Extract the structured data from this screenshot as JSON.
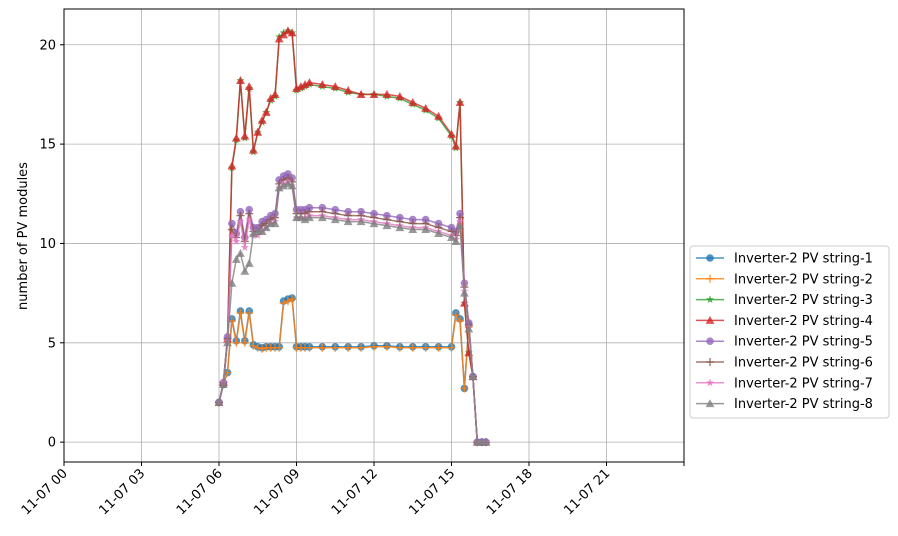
{
  "chart_data": {
    "type": "line",
    "title": "",
    "xlabel": "",
    "ylabel": "number of PV modules",
    "x_unit": "hour of 11-07",
    "xlim": [
      0,
      24
    ],
    "ylim": [
      -1,
      21.8
    ],
    "x_ticks": [
      0,
      3,
      6,
      9,
      12,
      15,
      18,
      21
    ],
    "x_tick_labels": [
      "11-07 00",
      "11-07 03",
      "11-07 06",
      "11-07 09",
      "11-07 12",
      "11-07 15",
      "11-07 18",
      "11-07 21"
    ],
    "y_ticks": [
      0,
      5,
      10,
      15,
      20
    ],
    "y_tick_labels": [
      "0",
      "5",
      "10",
      "15",
      "20"
    ],
    "grid": true,
    "legend_position": "right-outside",
    "x": [
      6.0,
      6.17,
      6.33,
      6.5,
      6.67,
      6.83,
      7.0,
      7.17,
      7.33,
      7.5,
      7.67,
      7.83,
      8.0,
      8.17,
      8.33,
      8.5,
      8.67,
      8.83,
      9.0,
      9.17,
      9.33,
      9.5,
      10.0,
      10.5,
      11.0,
      11.5,
      12.0,
      12.5,
      13.0,
      13.5,
      14.0,
      14.5,
      15.0,
      15.17,
      15.33,
      15.5,
      15.67,
      15.83,
      16.0,
      16.17,
      16.33
    ],
    "series": [
      {
        "name": "Inverter-2 PV string-1",
        "color": "#1f77b4",
        "marker": "circle",
        "values": [
          2.0,
          2.9,
          3.5,
          6.2,
          5.1,
          6.6,
          5.1,
          6.6,
          4.9,
          4.8,
          4.75,
          4.8,
          4.8,
          4.8,
          4.8,
          7.1,
          7.2,
          7.25,
          4.8,
          4.8,
          4.8,
          4.8,
          4.8,
          4.8,
          4.8,
          4.8,
          4.85,
          4.85,
          4.8,
          4.8,
          4.8,
          4.8,
          4.8,
          6.5,
          6.2,
          2.7,
          5.9,
          3.3,
          0.0,
          0.0,
          0.0
        ]
      },
      {
        "name": "Inverter-2 PV string-2",
        "color": "#ff7f0e",
        "marker": "plus",
        "values": [
          2.0,
          2.9,
          3.5,
          6.1,
          5.0,
          6.5,
          5.0,
          6.5,
          4.85,
          4.75,
          4.7,
          4.75,
          4.75,
          4.75,
          4.75,
          7.0,
          7.1,
          7.2,
          4.75,
          4.75,
          4.75,
          4.75,
          4.75,
          4.75,
          4.75,
          4.75,
          4.8,
          4.8,
          4.75,
          4.75,
          4.75,
          4.75,
          4.75,
          6.4,
          6.1,
          2.7,
          5.8,
          3.3,
          0.0,
          0.0,
          0.0
        ]
      },
      {
        "name": "Inverter-2 PV string-3",
        "color": "#2ca02c",
        "marker": "star",
        "values": [
          2.0,
          3.0,
          5.2,
          13.8,
          15.2,
          18.2,
          15.3,
          17.8,
          14.6,
          15.6,
          16.1,
          16.6,
          17.2,
          17.4,
          20.4,
          20.6,
          20.7,
          20.6,
          17.7,
          17.8,
          17.9,
          18.0,
          17.9,
          17.8,
          17.6,
          17.5,
          17.5,
          17.4,
          17.3,
          17.0,
          16.7,
          16.3,
          15.4,
          14.8,
          17.1,
          7.0,
          4.5,
          3.3,
          0.0,
          0.0,
          0.0
        ]
      },
      {
        "name": "Inverter-2 PV string-4",
        "color": "#d62728",
        "marker": "triangle-up",
        "values": [
          2.0,
          3.0,
          5.2,
          13.9,
          15.3,
          18.2,
          15.4,
          17.9,
          14.7,
          15.6,
          16.2,
          16.6,
          17.3,
          17.5,
          20.3,
          20.5,
          20.7,
          20.6,
          17.8,
          17.9,
          18.0,
          18.1,
          18.0,
          17.9,
          17.7,
          17.5,
          17.5,
          17.5,
          17.4,
          17.1,
          16.8,
          16.4,
          15.5,
          14.9,
          17.1,
          7.0,
          4.5,
          3.3,
          0.0,
          0.0,
          0.0
        ]
      },
      {
        "name": "Inverter-2 PV string-5",
        "color": "#9467bd",
        "marker": "circle",
        "values": [
          2.0,
          3.0,
          5.3,
          11.0,
          10.5,
          11.6,
          10.3,
          11.7,
          10.8,
          10.8,
          11.1,
          11.2,
          11.4,
          11.5,
          13.2,
          13.4,
          13.5,
          13.3,
          11.7,
          11.7,
          11.7,
          11.8,
          11.8,
          11.7,
          11.6,
          11.6,
          11.5,
          11.4,
          11.3,
          11.2,
          11.2,
          11.0,
          10.8,
          10.6,
          11.5,
          8.0,
          6.0,
          3.3,
          0.0,
          0.0,
          0.0
        ]
      },
      {
        "name": "Inverter-2 PV string-6",
        "color": "#8c564b",
        "marker": "plus",
        "values": [
          2.0,
          3.0,
          5.2,
          10.7,
          10.3,
          11.4,
          10.1,
          11.5,
          10.6,
          10.6,
          10.9,
          11.0,
          11.2,
          11.3,
          13.0,
          13.2,
          13.3,
          13.1,
          11.5,
          11.5,
          11.5,
          11.6,
          11.6,
          11.5,
          11.4,
          11.4,
          11.3,
          11.2,
          11.1,
          11.0,
          11.0,
          10.8,
          10.6,
          10.4,
          11.3,
          7.8,
          5.9,
          3.3,
          0.0,
          0.0,
          0.0
        ]
      },
      {
        "name": "Inverter-2 PV string-7",
        "color": "#e377c2",
        "marker": "star",
        "values": [
          2.0,
          3.0,
          5.1,
          10.4,
          10.1,
          11.1,
          9.8,
          11.2,
          10.4,
          10.4,
          10.6,
          10.8,
          11.0,
          11.1,
          12.8,
          13.0,
          13.1,
          12.9,
          11.3,
          11.3,
          11.3,
          11.4,
          11.4,
          11.3,
          11.2,
          11.2,
          11.1,
          11.0,
          10.9,
          10.8,
          10.8,
          10.6,
          10.4,
          10.2,
          11.1,
          7.6,
          5.8,
          3.3,
          0.0,
          0.0,
          0.0
        ]
      },
      {
        "name": "Inverter-2 PV string-8",
        "color": "#7f7f7f",
        "marker": "triangle-up",
        "values": [
          2.0,
          2.9,
          5.0,
          8.0,
          9.2,
          9.5,
          8.6,
          9.0,
          10.5,
          10.6,
          10.6,
          10.8,
          11.0,
          11.0,
          12.8,
          12.9,
          13.0,
          12.9,
          11.3,
          11.3,
          11.2,
          11.3,
          11.3,
          11.2,
          11.1,
          11.1,
          11.0,
          10.9,
          10.8,
          10.7,
          10.7,
          10.5,
          10.3,
          10.1,
          10.9,
          7.5,
          5.7,
          3.3,
          0.0,
          0.0,
          0.0
        ]
      }
    ]
  }
}
